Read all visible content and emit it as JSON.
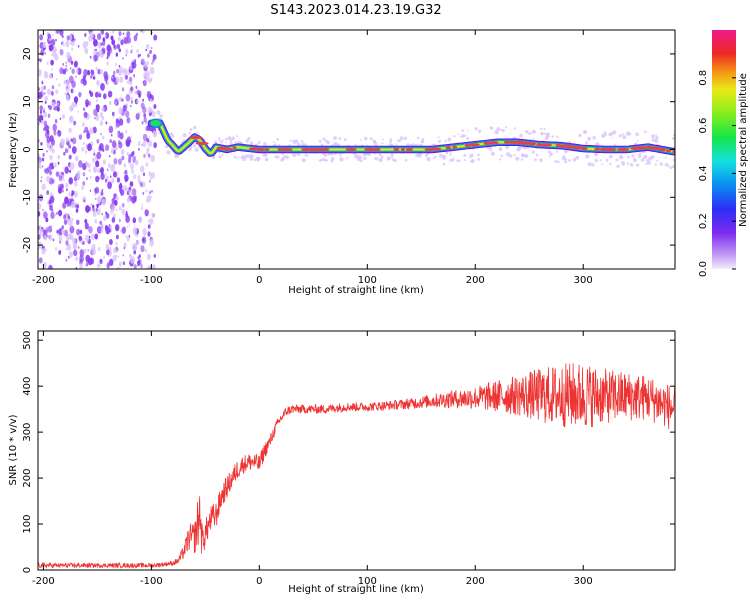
{
  "figure": {
    "title": "S143.2023.014.23.19.G32"
  },
  "colors": {
    "snr_line": "#ee3333",
    "axes": "#000000",
    "background": "#ffffff",
    "signal_core": "#e8404a",
    "signal_inner": "#22dd55",
    "signal_mid": "#1a7ff0",
    "signal_outer": "#6a11e8",
    "noise": "#8a3df0",
    "halo": "#d9c4fb"
  },
  "chart_data": [
    {
      "type": "heatmap",
      "xlabel": "Height of straight line (km)",
      "ylabel": "Frequency (Hz)",
      "xlim": [
        -205,
        385
      ],
      "ylim": [
        -25,
        25
      ],
      "xticks": [
        -200,
        -100,
        0,
        100,
        200,
        300
      ],
      "yticks": [
        -20,
        -10,
        0,
        10,
        20
      ],
      "grid": false,
      "colorbar": {
        "label": "Normalized spectral amplitude",
        "range": [
          0.0,
          1.0
        ],
        "ticks": [
          "0.0",
          "0.2",
          "0.4",
          "0.6",
          "0.8"
        ],
        "colormap": "rainbow (purple-blue-cyan-green-yellow-red-magenta)"
      },
      "signal_ridge": {
        "x": [
          -100,
          -92,
          -85,
          -80,
          -75,
          -70,
          -65,
          -60,
          -55,
          -50,
          -45,
          -40,
          -30,
          -20,
          0,
          20,
          40,
          60,
          100,
          140,
          160,
          180,
          200,
          220,
          240,
          260,
          280,
          300,
          320,
          340,
          360,
          385
        ],
        "y": [
          5.5,
          5.5,
          2.0,
          0.8,
          -0.5,
          0.5,
          1.5,
          2.6,
          2.0,
          0.2,
          -1.0,
          0.5,
          0.0,
          0.5,
          0.0,
          0.0,
          0.0,
          0.0,
          0.0,
          0.0,
          0.0,
          0.5,
          1.0,
          1.5,
          1.5,
          1.0,
          0.8,
          0.2,
          0.0,
          0.0,
          0.5,
          -0.5
        ]
      },
      "noise_region": {
        "x_range": [
          -205,
          -100
        ],
        "note": ""
      }
    },
    {
      "type": "line",
      "xlabel": "Height of straight line (km)",
      "ylabel": "SNR (10 * v/v)",
      "xlim": [
        -205,
        385
      ],
      "ylim": [
        0,
        520
      ],
      "xticks": [
        -200,
        -100,
        0,
        100,
        200,
        300
      ],
      "yticks": [
        0,
        100,
        200,
        300,
        400,
        500
      ],
      "grid": false,
      "series": [
        {
          "x": [
            -205,
            -180,
            -160,
            -140,
            -120,
            -100,
            -90,
            -80,
            -75,
            -70,
            -65,
            -60,
            -57,
            -55,
            -53,
            -50,
            -45,
            -40,
            -35,
            -30,
            -25,
            -20,
            -15,
            -10,
            -5,
            0,
            5,
            10,
            15,
            20,
            25,
            30,
            40,
            60,
            80,
            100,
            120,
            140,
            160,
            180,
            200,
            220,
            240,
            260,
            280,
            300,
            320,
            340,
            360,
            385
          ],
          "y": [
            10,
            10,
            10,
            10,
            10,
            10,
            12,
            15,
            20,
            40,
            70,
            70,
            100,
            130,
            60,
            80,
            110,
            120,
            160,
            180,
            200,
            220,
            230,
            235,
            235,
            230,
            260,
            280,
            310,
            330,
            345,
            350,
            350,
            350,
            355,
            355,
            358,
            362,
            368,
            372,
            375,
            378,
            380,
            380,
            380,
            380,
            378,
            378,
            375,
            350
          ],
          "noise_amplitude": [
            5,
            5,
            5,
            5,
            5,
            5,
            5,
            5,
            8,
            15,
            30,
            35,
            60,
            50,
            40,
            30,
            30,
            30,
            25,
            25,
            22,
            22,
            20,
            20,
            20,
            20,
            18,
            15,
            12,
            12,
            10,
            10,
            10,
            10,
            10,
            10,
            10,
            12,
            15,
            20,
            25,
            35,
            45,
            60,
            70,
            75,
            60,
            55,
            50,
            50
          ]
        }
      ]
    }
  ]
}
